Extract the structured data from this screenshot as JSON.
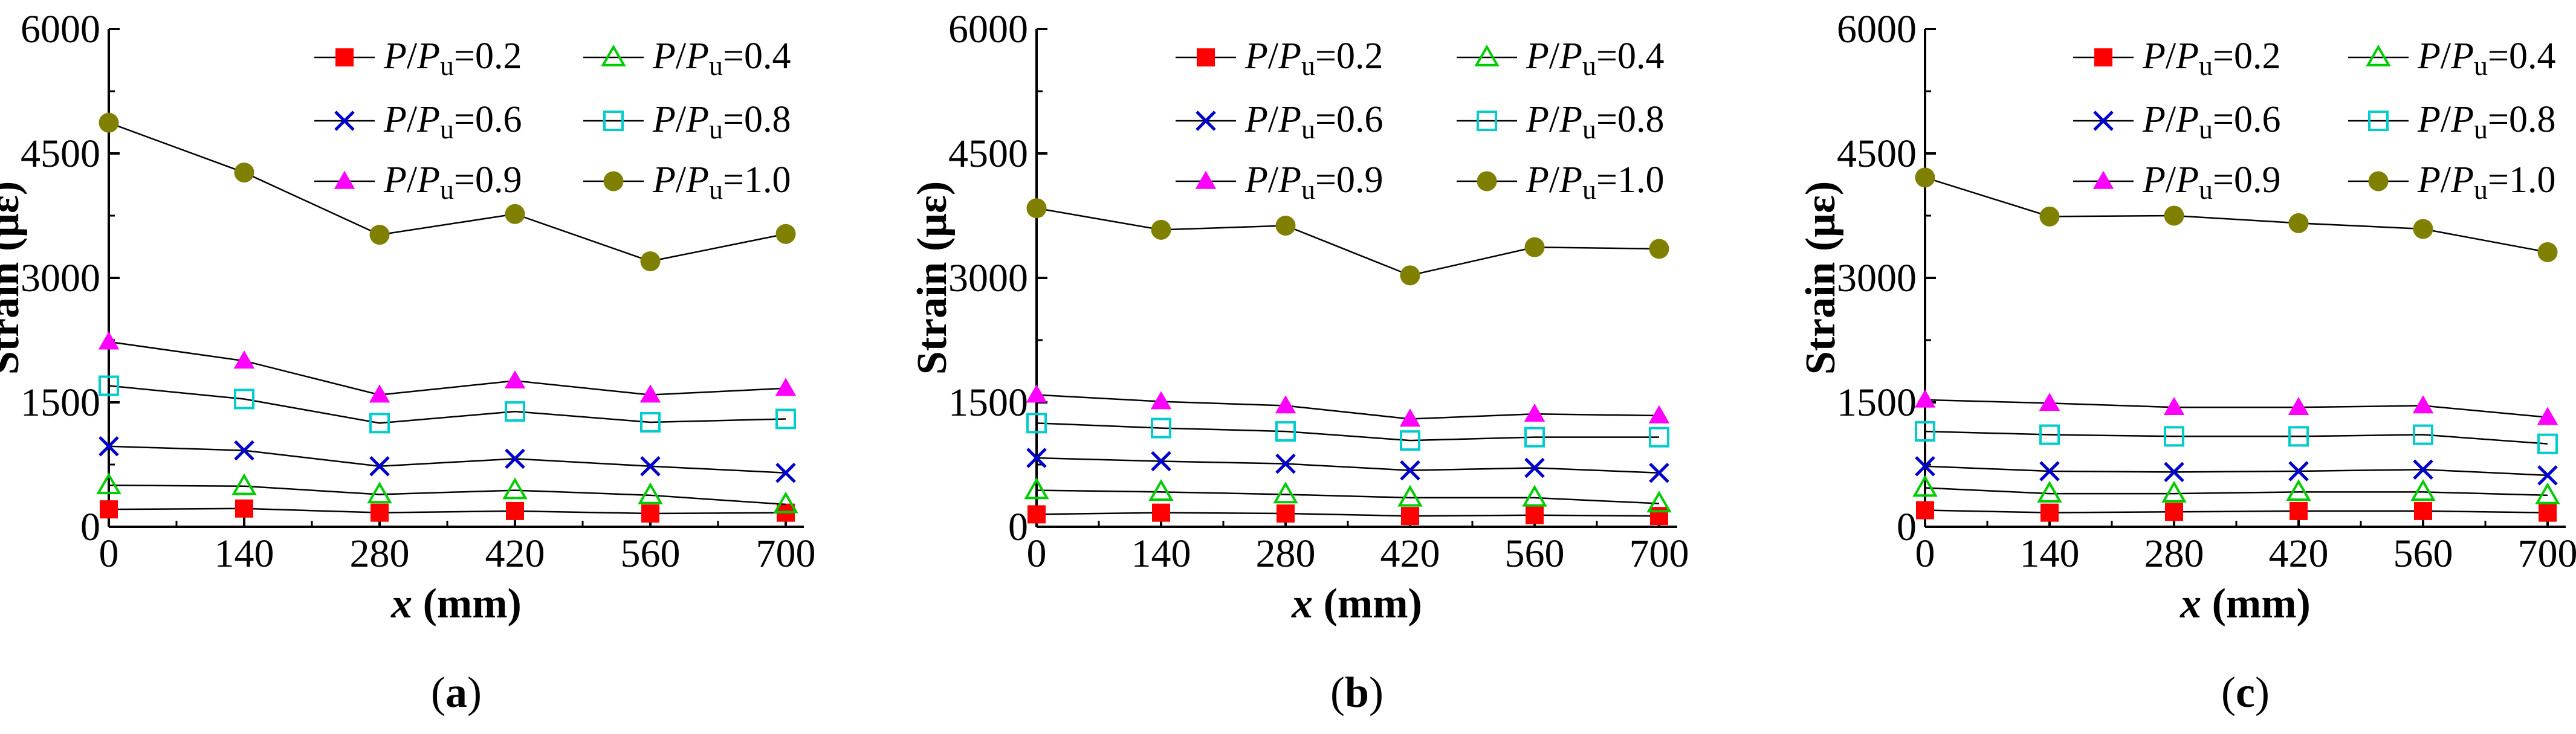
{
  "chart_data": [
    {
      "type": "line",
      "panel_label": "(a)",
      "x": [
        0,
        140,
        280,
        420,
        560,
        700
      ],
      "x_tick_labels": [
        "0",
        "140",
        "280",
        "420",
        "560",
        "700"
      ],
      "y_tick_labels": [
        "0",
        "1500",
        "3000",
        "4500",
        "6000"
      ],
      "xlabel": "x (mm)",
      "ylabel": "Strain (με)",
      "xlim": [
        0,
        700
      ],
      "ylim": [
        0,
        6000
      ],
      "legend_position": "top",
      "series": [
        {
          "name": "P/Pu=0.2",
          "marker": "filled-square",
          "color": "#ff0000",
          "values": [
            210,
            220,
            170,
            190,
            160,
            170
          ]
        },
        {
          "name": "P/Pu=0.4",
          "marker": "open-triangle",
          "color": "#00cc00",
          "values": [
            500,
            490,
            390,
            440,
            380,
            270
          ]
        },
        {
          "name": "P/Pu=0.6",
          "marker": "cross",
          "color": "#0000cc",
          "values": [
            970,
            920,
            730,
            820,
            730,
            650
          ]
        },
        {
          "name": "P/Pu=0.8",
          "marker": "open-square",
          "color": "#00cccc",
          "values": [
            1700,
            1540,
            1250,
            1390,
            1260,
            1300
          ]
        },
        {
          "name": "P/Pu=0.9",
          "marker": "filled-triangle",
          "color": "#ff00ff",
          "values": [
            2230,
            2000,
            1590,
            1760,
            1590,
            1670
          ]
        },
        {
          "name": "P/Pu=1.0",
          "marker": "filled-circle",
          "color": "#808000",
          "values": [
            4870,
            4270,
            3520,
            3770,
            3200,
            3530
          ]
        }
      ]
    },
    {
      "type": "line",
      "panel_label": "(b)",
      "x": [
        0,
        140,
        280,
        420,
        560,
        700
      ],
      "x_tick_labels": [
        "0",
        "140",
        "280",
        "420",
        "560",
        "700"
      ],
      "y_tick_labels": [
        "0",
        "1500",
        "3000",
        "4500",
        "6000"
      ],
      "xlabel": "x (mm)",
      "ylabel": "Strain (με)",
      "xlim": [
        0,
        700
      ],
      "ylim": [
        0,
        6000
      ],
      "legend_position": "top",
      "series": [
        {
          "name": "P/Pu=0.2",
          "marker": "filled-square",
          "color": "#ff0000",
          "values": [
            150,
            170,
            160,
            130,
            140,
            130
          ]
        },
        {
          "name": "P/Pu=0.4",
          "marker": "open-triangle",
          "color": "#00cc00",
          "values": [
            440,
            420,
            390,
            350,
            350,
            280
          ]
        },
        {
          "name": "P/Pu=0.6",
          "marker": "cross",
          "color": "#0000cc",
          "values": [
            830,
            790,
            760,
            680,
            710,
            650
          ]
        },
        {
          "name": "P/Pu=0.8",
          "marker": "open-square",
          "color": "#00cccc",
          "values": [
            1250,
            1190,
            1150,
            1040,
            1080,
            1080
          ]
        },
        {
          "name": "P/Pu=0.9",
          "marker": "filled-triangle",
          "color": "#ff00ff",
          "values": [
            1590,
            1510,
            1460,
            1300,
            1360,
            1340
          ]
        },
        {
          "name": "P/Pu=1.0",
          "marker": "filled-circle",
          "color": "#808000",
          "values": [
            3840,
            3580,
            3630,
            3030,
            3370,
            3350
          ]
        }
      ]
    },
    {
      "type": "line",
      "panel_label": "(c)",
      "x": [
        0,
        140,
        280,
        420,
        560,
        700
      ],
      "x_tick_labels": [
        "0",
        "140",
        "280",
        "420",
        "560",
        "700"
      ],
      "y_tick_labels": [
        "0",
        "1500",
        "3000",
        "4500",
        "6000"
      ],
      "xlabel": "x (mm)",
      "ylabel": "Strain (με)",
      "xlim": [
        0,
        700
      ],
      "ylim": [
        0,
        6000
      ],
      "legend_position": "top",
      "series": [
        {
          "name": "P/Pu=0.2",
          "marker": "filled-square",
          "color": "#ff0000",
          "values": [
            200,
            170,
            180,
            190,
            190,
            170
          ]
        },
        {
          "name": "P/Pu=0.4",
          "marker": "open-triangle",
          "color": "#00cc00",
          "values": [
            470,
            400,
            400,
            420,
            420,
            380
          ]
        },
        {
          "name": "P/Pu=0.6",
          "marker": "cross",
          "color": "#0000cc",
          "values": [
            730,
            670,
            660,
            670,
            690,
            620
          ]
        },
        {
          "name": "P/Pu=0.8",
          "marker": "open-square",
          "color": "#00cccc",
          "values": [
            1150,
            1110,
            1090,
            1090,
            1110,
            1000
          ]
        },
        {
          "name": "P/Pu=0.9",
          "marker": "filled-triangle",
          "color": "#ff00ff",
          "values": [
            1530,
            1490,
            1440,
            1440,
            1460,
            1320
          ]
        },
        {
          "name": "P/Pu=1.0",
          "marker": "filled-circle",
          "color": "#808000",
          "values": [
            4210,
            3740,
            3750,
            3660,
            3590,
            3310
          ]
        }
      ]
    }
  ]
}
